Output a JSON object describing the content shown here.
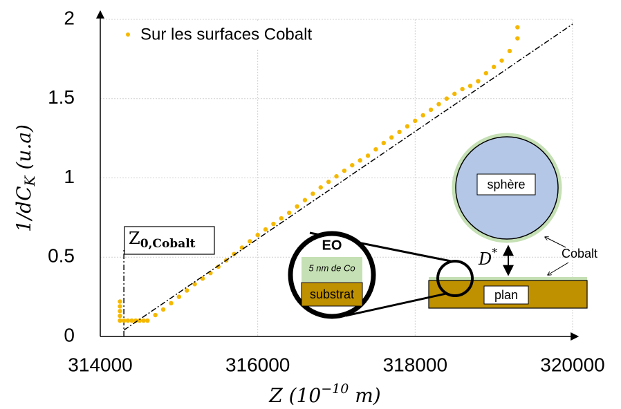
{
  "chart_data": {
    "type": "scatter",
    "legend": "Sur les surfaces Cobalt",
    "color": "#f5b800",
    "ylabel": "1/dC",
    "ylabel_sub": "K",
    "ylabel_tail": " (u.a)",
    "xlabel": "Z (10",
    "xlabel_sup": "−10",
    "xlabel_tail": " m)",
    "xlim": [
      314000,
      320000
    ],
    "ylim": [
      0,
      2
    ],
    "xticks": [
      314000,
      316000,
      318000,
      320000
    ],
    "yticks": [
      0,
      0.5,
      1,
      1.5,
      2
    ],
    "grid": true,
    "x": [
      314250,
      314250,
      314250,
      314250,
      314250,
      314300,
      314350,
      314400,
      314450,
      314500,
      314550,
      314600,
      314700,
      314800,
      314900,
      315000,
      315100,
      315200,
      315300,
      315400,
      315500,
      315600,
      315700,
      315800,
      315900,
      316000,
      316100,
      316200,
      316300,
      316400,
      316500,
      316600,
      316700,
      316800,
      316900,
      317000,
      317100,
      317200,
      317300,
      317400,
      317500,
      317600,
      317700,
      317800,
      317900,
      318000,
      318100,
      318200,
      318300,
      318400,
      318500,
      318600,
      318700,
      318800,
      318900,
      319000,
      319100,
      319200,
      319300,
      319300
    ],
    "values": [
      0.22,
      0.19,
      0.16,
      0.13,
      0.1,
      0.1,
      0.1,
      0.1,
      0.1,
      0.1,
      0.1,
      0.1,
      0.135,
      0.17,
      0.21,
      0.25,
      0.29,
      0.33,
      0.365,
      0.4,
      0.44,
      0.48,
      0.52,
      0.56,
      0.6,
      0.64,
      0.675,
      0.71,
      0.745,
      0.78,
      0.82,
      0.86,
      0.9,
      0.94,
      0.975,
      1.01,
      1.045,
      1.08,
      1.11,
      1.14,
      1.18,
      1.22,
      1.255,
      1.29,
      1.325,
      1.36,
      1.395,
      1.43,
      1.465,
      1.5,
      1.53,
      1.56,
      1.58,
      1.61,
      1.66,
      1.7,
      1.74,
      1.8,
      1.88,
      1.95
    ],
    "fit_line": {
      "x": [
        314300,
        320000
      ],
      "y": [
        0.04,
        1.97
      ]
    },
    "z0_line": {
      "x": 314300,
      "top": 0.55
    },
    "z0_label": "Z",
    "z0_label_sub": "0,Cobalt",
    "inset": {
      "eo": "EO",
      "cobalt_layer": "5 nm de Co",
      "substrate": "substrat",
      "sphere": "sphère",
      "plane": "plan",
      "cobalt": "Cobalt",
      "distance": "D",
      "distance_sup": "*"
    }
  }
}
